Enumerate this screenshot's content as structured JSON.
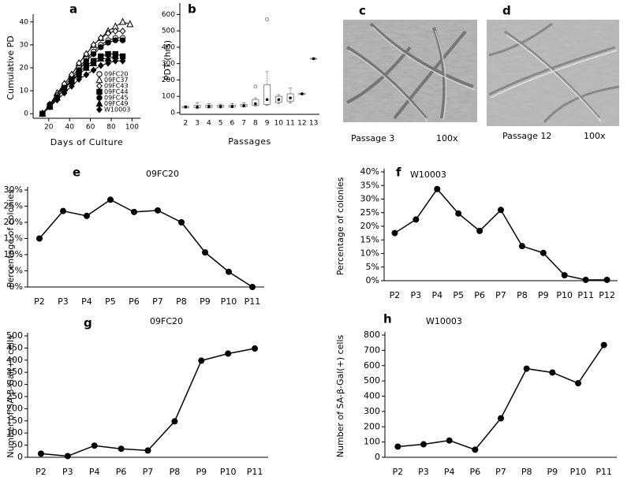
{
  "chart_data": [
    {
      "type": "line",
      "label": "a",
      "xlabel": "Days of Culture",
      "ylabel": "Cumulative PD",
      "xlim": [
        5,
        108
      ],
      "xticks": [
        20,
        40,
        60,
        80,
        100
      ],
      "ylim": [
        -2,
        42
      ],
      "yticks": [
        0,
        10,
        20,
        30,
        40
      ],
      "legend": "lower right",
      "series": [
        {
          "name": "09FC20",
          "color": "#000000",
          "marker": "circle-open",
          "x": [
            14,
            21,
            28,
            35,
            42,
            49,
            56,
            63,
            70,
            77,
            84,
            91
          ],
          "values": [
            0,
            4,
            8,
            12,
            16,
            20,
            24,
            27,
            30,
            32,
            33,
            33
          ]
        },
        {
          "name": "09FC37",
          "color": "#000000",
          "marker": "triangle-open",
          "x": [
            14,
            21,
            28,
            35,
            42,
            49,
            56,
            63,
            70,
            77,
            84,
            91,
            98
          ],
          "values": [
            0,
            4,
            9,
            13,
            17,
            22,
            26,
            30,
            33,
            36,
            38,
            40,
            39
          ]
        },
        {
          "name": "09FC43",
          "color": "#000000",
          "marker": "diamond-open",
          "x": [
            14,
            21,
            28,
            35,
            42,
            49,
            56,
            63,
            70,
            77,
            84,
            91
          ],
          "values": [
            0,
            4,
            8,
            13,
            17,
            22,
            26,
            30,
            33,
            35,
            36,
            36
          ]
        },
        {
          "name": "09FC44",
          "color": "#000000",
          "marker": "square",
          "x": [
            14,
            21,
            28,
            35,
            42,
            49,
            56,
            63,
            70,
            77,
            84,
            91
          ],
          "values": [
            0,
            3,
            7,
            11,
            14,
            18,
            21,
            23,
            25,
            26,
            26,
            25
          ]
        },
        {
          "name": "09FC45",
          "color": "#000000",
          "marker": "circle",
          "x": [
            14,
            21,
            28,
            35,
            42,
            49,
            56,
            63,
            70,
            77,
            84,
            91
          ],
          "values": [
            0,
            4,
            7,
            11,
            15,
            19,
            23,
            26,
            29,
            31,
            32,
            32
          ]
        },
        {
          "name": "09FC49",
          "color": "#000000",
          "marker": "triangle",
          "x": [
            14,
            21,
            28,
            35,
            42,
            49,
            56,
            63,
            70,
            77,
            84
          ],
          "values": [
            0,
            3,
            7,
            11,
            14,
            17,
            20,
            22,
            24,
            24,
            25
          ]
        },
        {
          "name": "W10003",
          "color": "#000000",
          "marker": "diamond",
          "x": [
            14,
            21,
            28,
            35,
            42,
            49,
            56,
            63,
            70,
            77,
            84,
            91
          ],
          "values": [
            0,
            3,
            6,
            9,
            12,
            15,
            17,
            19,
            21,
            22,
            23,
            23
          ]
        }
      ]
    },
    {
      "type": "box",
      "label": "b",
      "xlabel": "Passages",
      "ylabel": "PDT (hrs)",
      "color": "#888888",
      "categories": [
        "2",
        "3",
        "4",
        "5",
        "6",
        "7",
        "8",
        "9",
        "10",
        "11",
        "12",
        "13"
      ],
      "ylim": [
        -10,
        650
      ],
      "yticks": [
        0,
        100,
        200,
        300,
        400,
        500,
        600
      ],
      "min": [
        28,
        25,
        28,
        28,
        30,
        35,
        40,
        45,
        55,
        60,
        110,
        325
      ],
      "q1": [
        30,
        30,
        32,
        33,
        34,
        38,
        45,
        50,
        65,
        70,
        112,
        328
      ],
      "median": [
        35,
        35,
        38,
        38,
        38,
        42,
        55,
        80,
        80,
        90,
        115,
        330
      ],
      "q3": [
        38,
        45,
        45,
        45,
        45,
        50,
        80,
        170,
        100,
        115,
        118,
        332
      ],
      "max": [
        42,
        60,
        55,
        52,
        55,
        60,
        90,
        250,
        110,
        150,
        120,
        335
      ],
      "outliers": [
        [],
        [],
        [],
        [],
        [],
        [],
        [
          160
        ],
        [
          570
        ],
        [],
        [],
        [],
        []
      ]
    },
    {
      "type": "line",
      "label": "e",
      "title": "09FC20",
      "ylabel": "Percentage of colonies",
      "color": "#000000",
      "categories": [
        "P2",
        "P3",
        "P4",
        "P5",
        "P6",
        "P7",
        "P8",
        "P9",
        "P10",
        "P11"
      ],
      "values": [
        15,
        23.5,
        22,
        27,
        23.2,
        23.7,
        20,
        10.7,
        4.7,
        0
      ],
      "ylim": [
        0,
        30
      ],
      "yticks": [
        {
          "value": 0,
          "label": "0%"
        },
        {
          "value": 5,
          "label": "5%"
        },
        {
          "value": 10,
          "label": "10%"
        },
        {
          "value": 15,
          "label": "15%"
        },
        {
          "value": 20,
          "label": "20%"
        },
        {
          "value": 25,
          "label": "25%"
        },
        {
          "value": 30,
          "label": "30%"
        }
      ]
    },
    {
      "type": "line",
      "label": "f",
      "title": "W10003",
      "ylabel": "Percentage of colonies",
      "color": "#000000",
      "categories": [
        "P2",
        "P3",
        "P4",
        "P5",
        "P6",
        "P7",
        "P8",
        "P9",
        "P10",
        "P11",
        "P12"
      ],
      "values": [
        17.5,
        22.5,
        33.7,
        24.7,
        18.3,
        26,
        12.7,
        10.2,
        2,
        0.3,
        0.3
      ],
      "ylim": [
        0,
        40
      ],
      "yticks": [
        {
          "value": 0,
          "label": "0%"
        },
        {
          "value": 5,
          "label": "5%"
        },
        {
          "value": 10,
          "label": "10%"
        },
        {
          "value": 15,
          "label": "15%"
        },
        {
          "value": 20,
          "label": "20%"
        },
        {
          "value": 25,
          "label": "25%"
        },
        {
          "value": 30,
          "label": "30%"
        },
        {
          "value": 35,
          "label": "35%"
        },
        {
          "value": 40,
          "label": "40%"
        }
      ]
    },
    {
      "type": "line",
      "label": "g",
      "title": "09FC20",
      "ylabel": "Number of SA-β-Gal(+) cells",
      "color": "#000000",
      "categories": [
        "P2",
        "P3",
        "P4",
        "P6",
        "P7",
        "P8",
        "P9",
        "P10",
        "P11"
      ],
      "values": [
        15,
        5,
        48,
        35,
        28,
        148,
        398,
        427,
        448
      ],
      "ylim": [
        0,
        500
      ],
      "yticks": [
        0,
        50,
        100,
        150,
        200,
        250,
        300,
        350,
        400,
        450,
        500
      ]
    },
    {
      "type": "line",
      "label": "h",
      "title": "W10003",
      "ylabel": "Number of SA-β-Gal(+) cells",
      "color": "#000000",
      "categories": [
        "P2",
        "P3",
        "P4",
        "P6",
        "P7",
        "P8",
        "P9",
        "P10",
        "P11"
      ],
      "values": [
        70,
        85,
        110,
        50,
        255,
        580,
        555,
        485,
        735
      ],
      "ylim": [
        0,
        800
      ],
      "yticks": [
        0,
        100,
        200,
        300,
        400,
        500,
        600,
        700,
        800
      ]
    }
  ],
  "images": [
    {
      "label": "c",
      "caption": "Passage 3",
      "magnification": "100x"
    },
    {
      "label": "d",
      "caption": "Passage 12",
      "magnification": "100x"
    }
  ]
}
